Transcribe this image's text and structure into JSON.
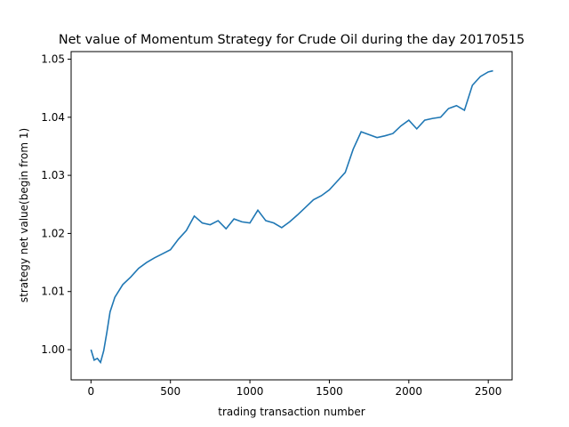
{
  "chart_data": {
    "type": "line",
    "title": "Net value of Momentum Strategy for Crude Oil during the day 20170515",
    "xlabel": "trading transaction number",
    "ylabel": "strategy net value(begin from 1)",
    "xlim": [
      -125,
      2650
    ],
    "ylim": [
      0.9948,
      1.0513
    ],
    "xticks": [
      0,
      500,
      1000,
      1500,
      2000,
      2500
    ],
    "xtick_labels": [
      "0",
      "500",
      "1000",
      "1500",
      "2000",
      "2500"
    ],
    "yticks": [
      1.0,
      1.01,
      1.02,
      1.03,
      1.04,
      1.05
    ],
    "ytick_labels": [
      "1.00",
      "1.01",
      "1.02",
      "1.03",
      "1.04",
      "1.05"
    ],
    "grid": false,
    "series": [
      {
        "color": "#1f77b4",
        "x": [
          0,
          20,
          40,
          60,
          80,
          100,
          120,
          150,
          200,
          250,
          300,
          350,
          400,
          450,
          500,
          550,
          600,
          650,
          700,
          750,
          800,
          850,
          900,
          950,
          1000,
          1050,
          1100,
          1150,
          1200,
          1250,
          1300,
          1350,
          1400,
          1450,
          1500,
          1550,
          1600,
          1650,
          1700,
          1750,
          1800,
          1850,
          1900,
          1950,
          2000,
          2050,
          2100,
          2150,
          2200,
          2250,
          2300,
          2350,
          2400,
          2450,
          2500,
          2530
        ],
        "y": [
          1.0,
          0.9982,
          0.9985,
          0.9978,
          0.9998,
          1.003,
          1.0065,
          1.009,
          1.0112,
          1.0125,
          1.014,
          1.015,
          1.0158,
          1.0165,
          1.0172,
          1.019,
          1.0205,
          1.023,
          1.0218,
          1.0215,
          1.0222,
          1.0208,
          1.0225,
          1.022,
          1.0218,
          1.024,
          1.0222,
          1.0218,
          1.021,
          1.022,
          1.0232,
          1.0245,
          1.0258,
          1.0265,
          1.0275,
          1.029,
          1.0305,
          1.0345,
          1.0375,
          1.037,
          1.0365,
          1.0368,
          1.0372,
          1.0385,
          1.0395,
          1.038,
          1.0395,
          1.0398,
          1.04,
          1.0415,
          1.042,
          1.0412,
          1.0455,
          1.047,
          1.0478,
          1.048
        ]
      }
    ]
  }
}
